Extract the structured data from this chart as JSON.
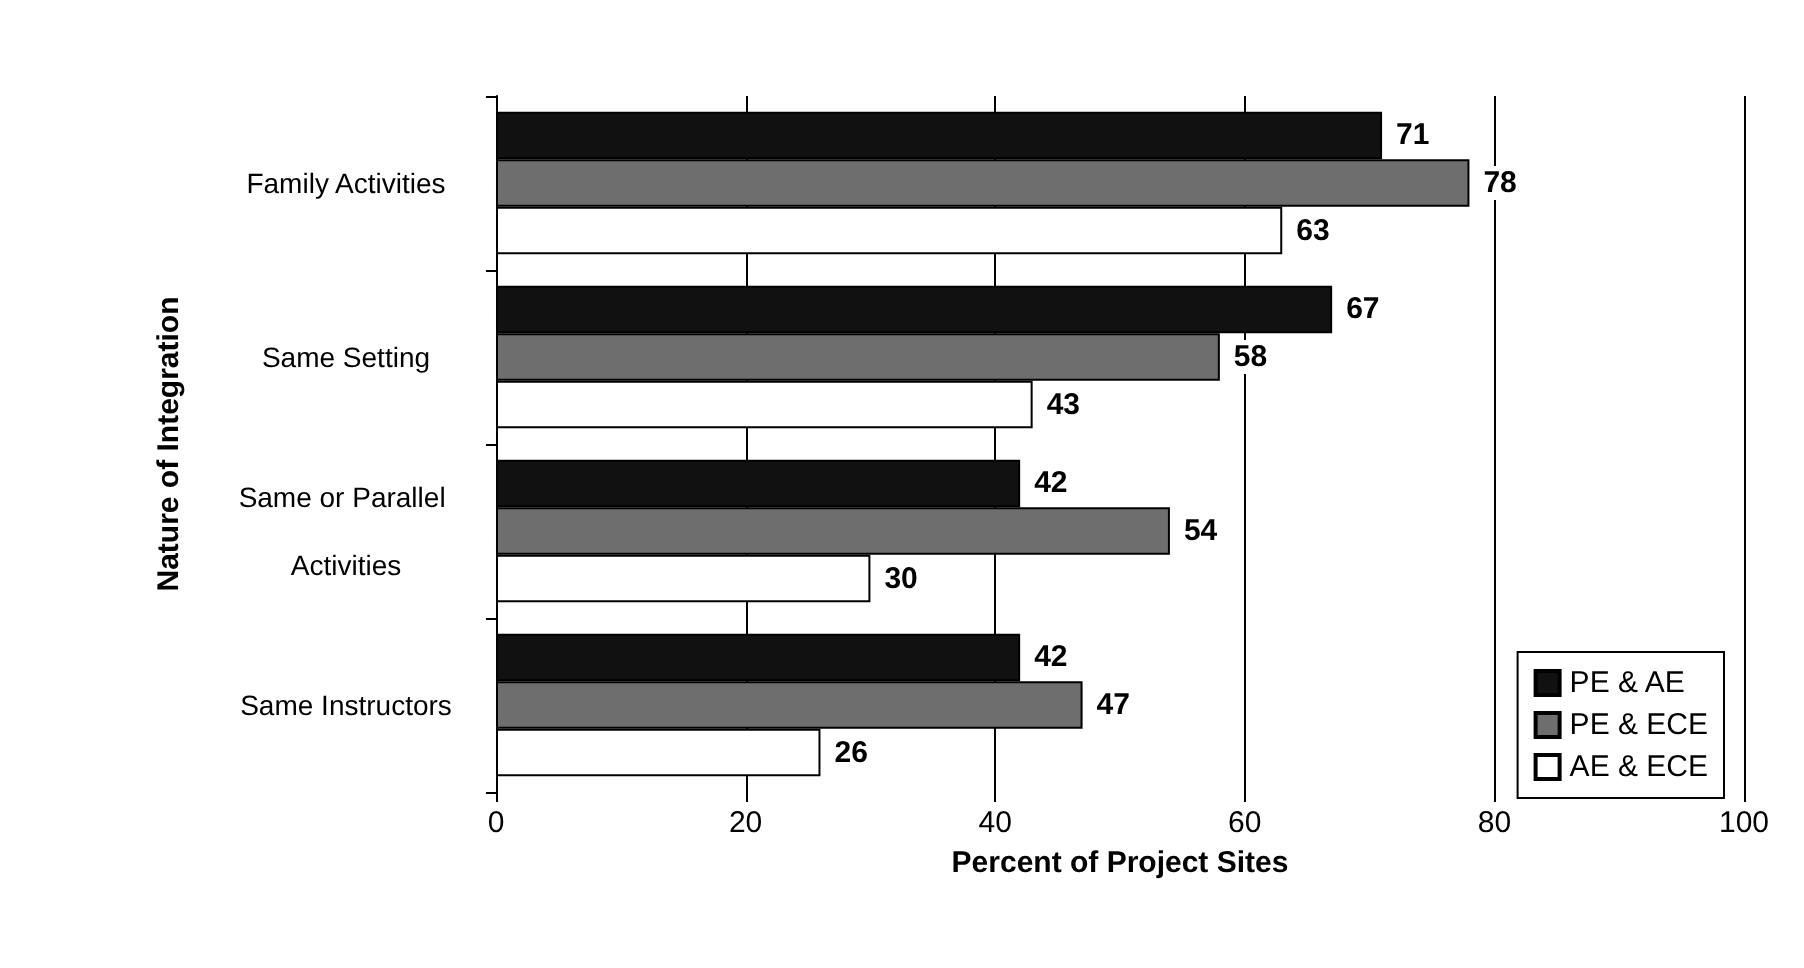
{
  "chart_data": {
    "type": "bar",
    "orientation": "horizontal",
    "ylabel": "Nature of Integration",
    "xlabel": "Percent of Project Sites",
    "categories": [
      "Family Activities",
      "Same Setting",
      "Same or Parallel Activities",
      "Same Instructors"
    ],
    "series": [
      {
        "name": "PE & AE",
        "color": "#111111",
        "values": [
          71,
          67,
          42,
          42
        ]
      },
      {
        "name": "PE & ECE",
        "color": "#6e6e6e",
        "values": [
          78,
          58,
          54,
          47
        ]
      },
      {
        "name": "AE & ECE",
        "color": "#ffffff",
        "values": [
          63,
          43,
          30,
          26
        ]
      }
    ],
    "xlim": [
      0,
      100
    ],
    "xticks": [
      0,
      20,
      40,
      60,
      80,
      100
    ],
    "grid": "x",
    "legend": "bottom right",
    "data_labels": true
  }
}
